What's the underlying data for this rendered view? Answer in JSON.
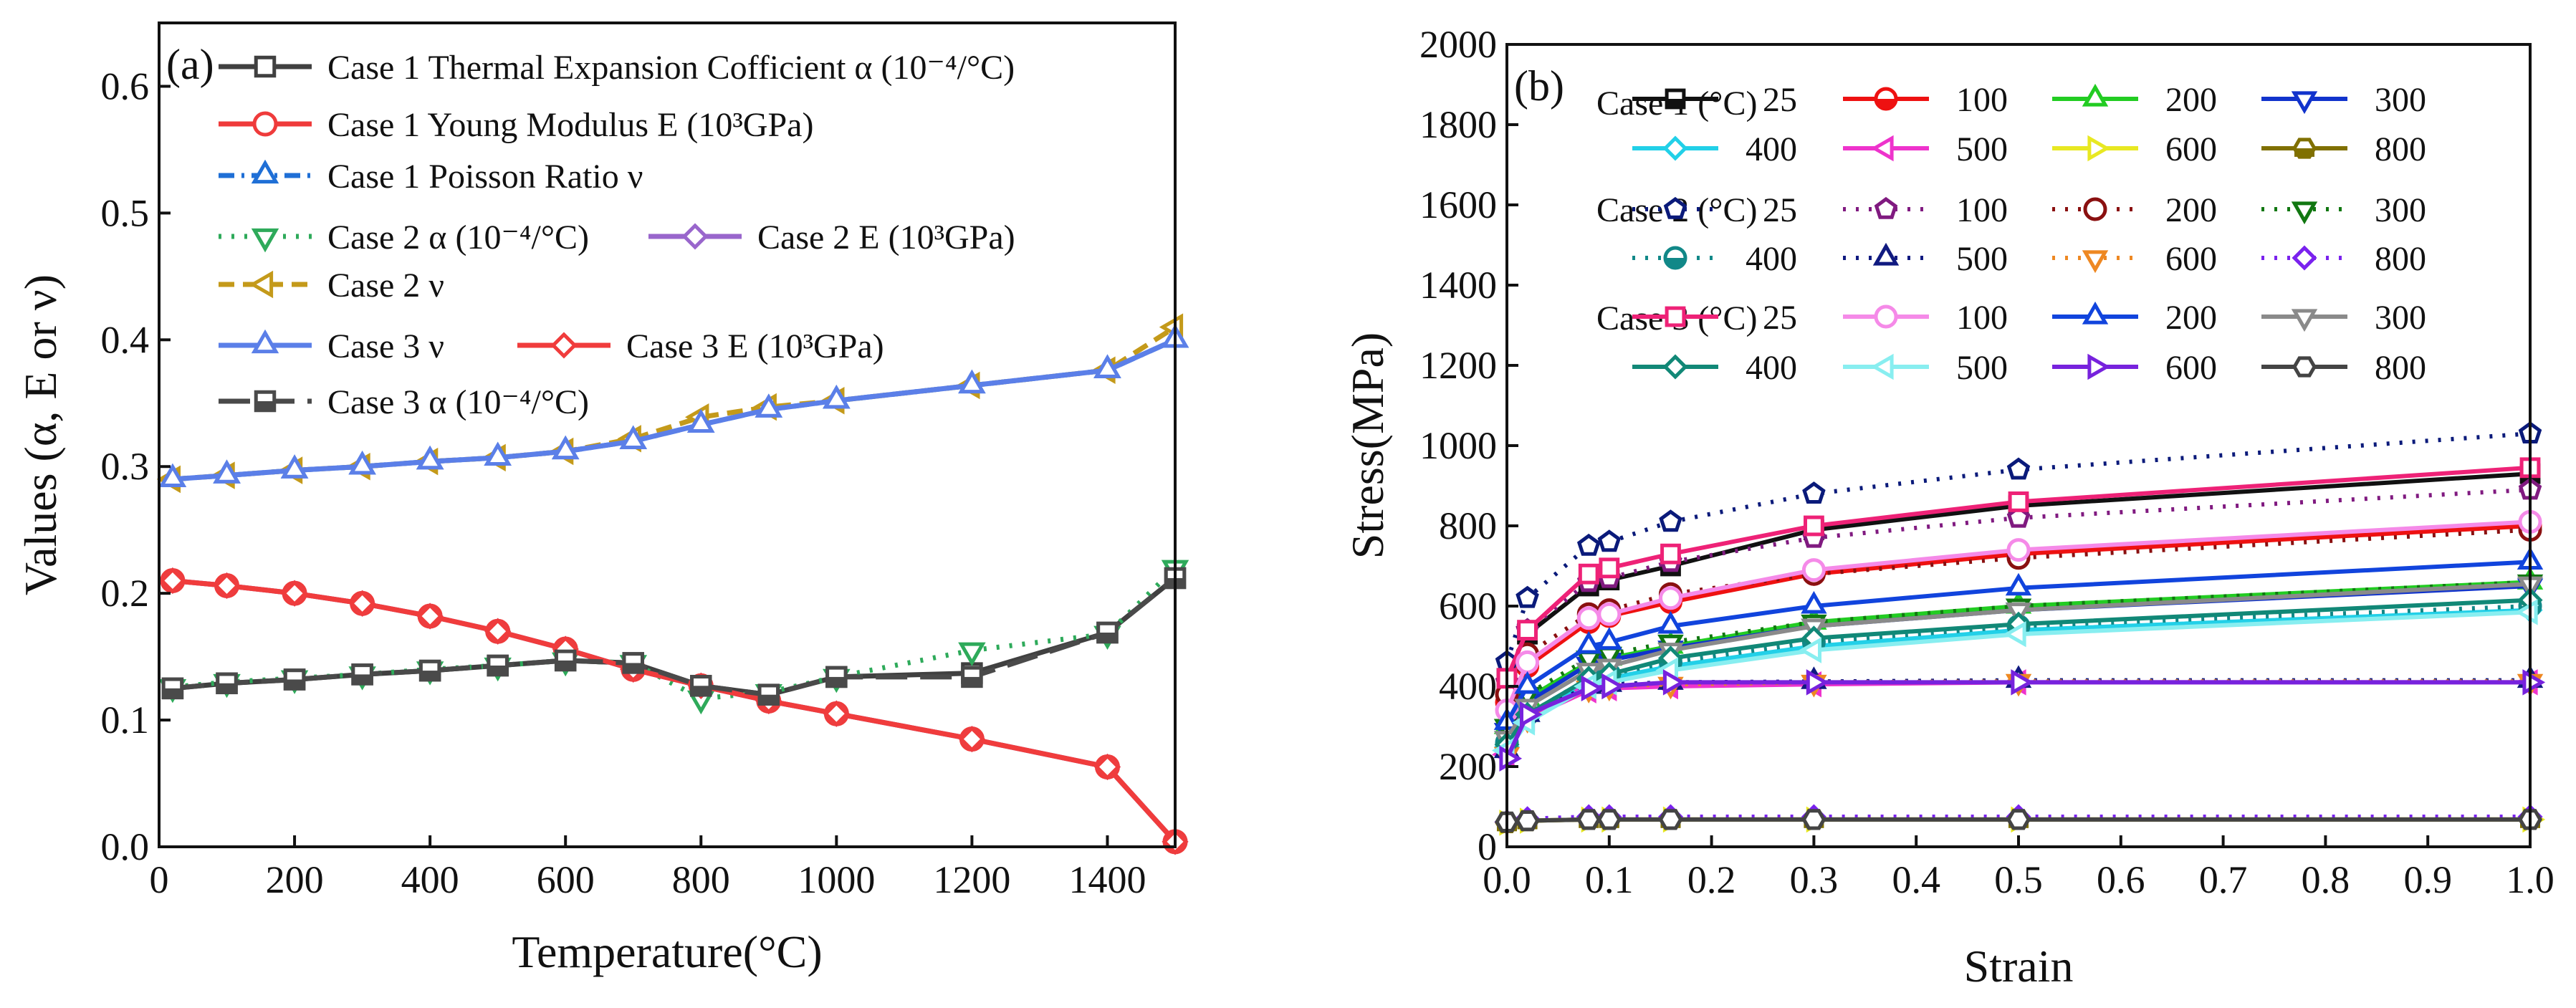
{
  "panel_labels": [
    "(a)",
    "(b)"
  ],
  "chart_data": [
    {
      "type": "line",
      "panel": "(a)",
      "title": "",
      "xlabel": "Temperature(°C)",
      "ylabel": "Values (α, E or ν)",
      "xlim": [
        0,
        1500
      ],
      "ylim": [
        0.0,
        0.65
      ],
      "xticks": [
        0,
        200,
        400,
        600,
        800,
        1000,
        1200,
        1400
      ],
      "yticks": [
        0.0,
        0.1,
        0.2,
        0.3,
        0.4,
        0.5,
        0.6
      ],
      "grid": false,
      "legend_position": "top-left",
      "series": [
        {
          "name": "Case 1 Thermal Expansion Cofficient α (10⁻⁴/°C)",
          "color": "#404040",
          "marker": "square",
          "dash": "solid",
          "x": [
            20,
            100,
            200,
            300,
            400,
            500,
            600,
            700,
            800,
            900,
            1000,
            1200,
            1400,
            1500
          ],
          "y": [
            0.125,
            0.129,
            0.132,
            0.136,
            0.139,
            0.143,
            0.147,
            0.145,
            0.127,
            0.12,
            0.134,
            0.137,
            0.169,
            0.212
          ]
        },
        {
          "name": "Case 1 Young Modulus E (10³GPa)",
          "color": "#ef3b3b",
          "marker": "circle",
          "dash": "solid",
          "x": [
            20,
            100,
            200,
            300,
            400,
            500,
            600,
            700,
            800,
            900,
            1000,
            1200,
            1400,
            1500
          ],
          "y": [
            0.21,
            0.206,
            0.2,
            0.192,
            0.182,
            0.17,
            0.156,
            0.14,
            0.127,
            0.115,
            0.105,
            0.085,
            0.063,
            0.004
          ]
        },
        {
          "name": "Case 1 Poisson Ratio ν",
          "color": "#1f6fd6",
          "marker": "triangle-up",
          "dash": "dashdot",
          "x": [
            20,
            100,
            200,
            300,
            400,
            500,
            600,
            700,
            800,
            900,
            1000,
            1200,
            1400,
            1500
          ],
          "y": [
            0.29,
            0.293,
            0.297,
            0.3,
            0.304,
            0.307,
            0.312,
            0.32,
            0.333,
            0.345,
            0.352,
            0.364,
            0.376,
            0.4
          ]
        },
        {
          "name": "Case 2 α (10⁻⁴/°C)",
          "color": "#2eaa5a",
          "marker": "triangle-down",
          "dash": "dot",
          "x": [
            20,
            100,
            200,
            300,
            400,
            500,
            600,
            700,
            800,
            900,
            1000,
            1200,
            1400,
            1500
          ],
          "y": [
            0.126,
            0.13,
            0.133,
            0.136,
            0.14,
            0.143,
            0.147,
            0.145,
            0.117,
            0.122,
            0.134,
            0.155,
            0.168,
            0.22
          ]
        },
        {
          "name": "Case 2 E (10³GPa)",
          "color": "#9966cc",
          "marker": "diamond",
          "dash": "solid",
          "x": [
            20,
            100,
            200,
            300,
            400,
            500,
            600,
            700,
            800,
            900,
            1000,
            1200,
            1400,
            1500
          ],
          "y": [
            0.21,
            0.206,
            0.2,
            0.192,
            0.182,
            0.17,
            0.156,
            0.14,
            0.127,
            0.115,
            0.105,
            0.085,
            0.063,
            0.004
          ]
        },
        {
          "name": "Case 2 ν",
          "color": "#c49a1a",
          "marker": "triangle-left",
          "dash": "dash",
          "x": [
            20,
            100,
            200,
            300,
            400,
            500,
            600,
            700,
            800,
            900,
            1000,
            1200,
            1400,
            1500
          ],
          "y": [
            0.29,
            0.293,
            0.297,
            0.3,
            0.304,
            0.307,
            0.312,
            0.322,
            0.339,
            0.347,
            0.352,
            0.364,
            0.376,
            0.41
          ]
        },
        {
          "name": "Case 3 ν",
          "color": "#5b7fe8",
          "marker": "triangle-up",
          "dash": "solid",
          "x": [
            20,
            100,
            200,
            300,
            400,
            500,
            600,
            700,
            800,
            900,
            1000,
            1200,
            1400,
            1500
          ],
          "y": [
            0.29,
            0.293,
            0.297,
            0.3,
            0.304,
            0.307,
            0.312,
            0.32,
            0.333,
            0.345,
            0.352,
            0.364,
            0.376,
            0.4
          ]
        },
        {
          "name": "Case 3 E (10³GPa)",
          "color": "#f03c3c",
          "marker": "diamond",
          "dash": "solid",
          "x": [
            20,
            100,
            200,
            300,
            400,
            500,
            600,
            700,
            800,
            900,
            1000,
            1200,
            1400,
            1500
          ],
          "y": [
            0.21,
            0.206,
            0.2,
            0.192,
            0.182,
            0.17,
            0.156,
            0.14,
            0.127,
            0.115,
            0.105,
            0.085,
            0.063,
            0.004
          ]
        },
        {
          "name": "Case 3 α (10⁻⁴/°C)",
          "color": "#4a4a4a",
          "marker": "half-square",
          "dash": "longdash",
          "x": [
            20,
            100,
            200,
            300,
            400,
            500,
            600,
            700,
            800,
            900,
            1000,
            1200,
            1400,
            1500
          ],
          "y": [
            0.125,
            0.129,
            0.132,
            0.136,
            0.139,
            0.143,
            0.147,
            0.145,
            0.127,
            0.12,
            0.134,
            0.134,
            0.169,
            0.212
          ]
        }
      ]
    },
    {
      "type": "line",
      "panel": "(b)",
      "title": "",
      "xlabel": "Strain",
      "ylabel": "Stress(MPa)",
      "xlim": [
        0.0,
        1.0
      ],
      "ylim": [
        0,
        2000
      ],
      "xticks": [
        0.0,
        0.1,
        0.2,
        0.3,
        0.4,
        0.5,
        0.6,
        0.7,
        0.8,
        0.9,
        1.0
      ],
      "yticks": [
        0,
        200,
        400,
        600,
        800,
        1000,
        1200,
        1400,
        1600,
        1800,
        2000
      ],
      "grid": false,
      "legend_position": "top",
      "strain_points": [
        0.0,
        0.02,
        0.08,
        0.1,
        0.16,
        0.3,
        0.5,
        1.0
      ],
      "legend_groups": [
        {
          "label": "Case 1 (°C)",
          "temps": [
            "25",
            "100",
            "200",
            "300",
            "400",
            "500",
            "600",
            "800"
          ]
        },
        {
          "label": "Case 2 (°C)",
          "temps": [
            "25",
            "100",
            "200",
            "300",
            "400",
            "500",
            "600",
            "800"
          ]
        },
        {
          "label": "Case 3 (°C)",
          "temps": [
            "25",
            "100",
            "200",
            "300",
            "400",
            "500",
            "600",
            "800"
          ]
        }
      ],
      "series": [
        {
          "group": "Case 1 (°C)",
          "name": "25",
          "color": "#111111",
          "marker": "half-square",
          "dash": "solid",
          "y": [
            420,
            530,
            650,
            665,
            700,
            790,
            850,
            930
          ]
        },
        {
          "group": "Case 1 (°C)",
          "name": "100",
          "color": "#ee1111",
          "marker": "half-circle",
          "dash": "solid",
          "y": [
            360,
            450,
            560,
            575,
            610,
            680,
            730,
            800
          ]
        },
        {
          "group": "Case 1 (°C)",
          "name": "200",
          "color": "#22cc22",
          "marker": "triangle-up",
          "dash": "solid",
          "y": [
            300,
            370,
            460,
            470,
            500,
            560,
            600,
            660
          ]
        },
        {
          "group": "Case 1 (°C)",
          "name": "300",
          "color": "#1133cc",
          "marker": "triangle-down",
          "dash": "solid",
          "y": [
            290,
            360,
            455,
            465,
            495,
            550,
            590,
            650
          ]
        },
        {
          "group": "Case 1 (°C)",
          "name": "400",
          "color": "#22d0e8",
          "marker": "diamond",
          "dash": "solid",
          "y": [
            250,
            320,
            410,
            420,
            450,
            500,
            540,
            590
          ]
        },
        {
          "group": "Case 1 (°C)",
          "name": "500",
          "color": "#ee33cc",
          "marker": "triangle-left",
          "dash": "solid",
          "y": [
            230,
            320,
            390,
            395,
            400,
            405,
            410,
            410
          ]
        },
        {
          "group": "Case 1 (°C)",
          "name": "600",
          "color": "#e8e822",
          "marker": "triangle-right",
          "dash": "solid",
          "y": [
            60,
            65,
            68,
            68,
            68,
            68,
            68,
            68
          ]
        },
        {
          "group": "Case 1 (°C)",
          "name": "800",
          "color": "#807000",
          "marker": "half-hexagon",
          "dash": "solid",
          "y": [
            60,
            65,
            68,
            68,
            68,
            68,
            68,
            68
          ]
        },
        {
          "group": "Case 2 (°C)",
          "name": "25",
          "color": "#0a1a7a",
          "marker": "pentagon",
          "dash": "dot",
          "y": [
            460,
            620,
            750,
            760,
            810,
            880,
            940,
            1030
          ]
        },
        {
          "group": "Case 2 (°C)",
          "name": "100",
          "color": "#801a80",
          "marker": "pentagon",
          "dash": "dot",
          "y": [
            410,
            540,
            660,
            670,
            710,
            770,
            820,
            890
          ]
        },
        {
          "group": "Case 2 (°C)",
          "name": "200",
          "color": "#8a1010",
          "marker": "circle",
          "dash": "dot",
          "y": [
            380,
            480,
            580,
            590,
            630,
            680,
            720,
            790
          ]
        },
        {
          "group": "Case 2 (°C)",
          "name": "300",
          "color": "#117711",
          "marker": "triangle-down",
          "dash": "dot",
          "y": [
            300,
            380,
            470,
            480,
            510,
            560,
            600,
            660
          ]
        },
        {
          "group": "Case 2 (°C)",
          "name": "400",
          "color": "#118888",
          "marker": "half-circle",
          "dash": "dot",
          "y": [
            260,
            330,
            420,
            430,
            460,
            510,
            550,
            600
          ]
        },
        {
          "group": "Case 2 (°C)",
          "name": "500",
          "color": "#101a80",
          "marker": "triangle-up",
          "dash": "dot",
          "y": [
            240,
            330,
            400,
            405,
            410,
            412,
            415,
            415
          ]
        },
        {
          "group": "Case 2 (°C)",
          "name": "600",
          "color": "#ee8822",
          "marker": "triangle-down",
          "dash": "dot",
          "y": [
            230,
            320,
            395,
            400,
            405,
            410,
            412,
            412
          ]
        },
        {
          "group": "Case 2 (°C)",
          "name": "800",
          "color": "#7a22ee",
          "marker": "diamond",
          "dash": "dot",
          "y": [
            62,
            70,
            75,
            75,
            75,
            75,
            75,
            75
          ]
        },
        {
          "group": "Case 3 (°C)",
          "name": "25",
          "color": "#ee2277",
          "marker": "square",
          "dash": "solid",
          "y": [
            420,
            540,
            680,
            695,
            730,
            800,
            860,
            945
          ]
        },
        {
          "group": "Case 3 (°C)",
          "name": "100",
          "color": "#f58ae8",
          "marker": "circle",
          "dash": "solid",
          "y": [
            340,
            460,
            570,
            580,
            620,
            690,
            740,
            810
          ]
        },
        {
          "group": "Case 3 (°C)",
          "name": "200",
          "color": "#1144dd",
          "marker": "triangle-up",
          "dash": "solid",
          "y": [
            310,
            400,
            500,
            510,
            550,
            600,
            645,
            710
          ]
        },
        {
          "group": "Case 3 (°C)",
          "name": "300",
          "color": "#8a8a8a",
          "marker": "triangle-down",
          "dash": "solid",
          "y": [
            270,
            350,
            440,
            450,
            490,
            550,
            590,
            655
          ]
        },
        {
          "group": "Case 3 (°C)",
          "name": "400",
          "color": "#118877",
          "marker": "diamond",
          "dash": "solid",
          "y": [
            255,
            330,
            420,
            430,
            470,
            520,
            555,
            615
          ]
        },
        {
          "group": "Case 3 (°C)",
          "name": "500",
          "color": "#88eef0",
          "marker": "triangle-left",
          "dash": "solid",
          "y": [
            240,
            310,
            400,
            410,
            440,
            490,
            530,
            585
          ]
        },
        {
          "group": "Case 3 (°C)",
          "name": "600",
          "color": "#7722dd",
          "marker": "triangle-right",
          "dash": "solid",
          "y": [
            220,
            330,
            395,
            400,
            410,
            410,
            410,
            410
          ]
        },
        {
          "group": "Case 3 (°C)",
          "name": "800",
          "color": "#444444",
          "marker": "hexagon",
          "dash": "solid",
          "y": [
            62,
            65,
            68,
            68,
            68,
            68,
            68,
            68
          ]
        }
      ]
    }
  ]
}
